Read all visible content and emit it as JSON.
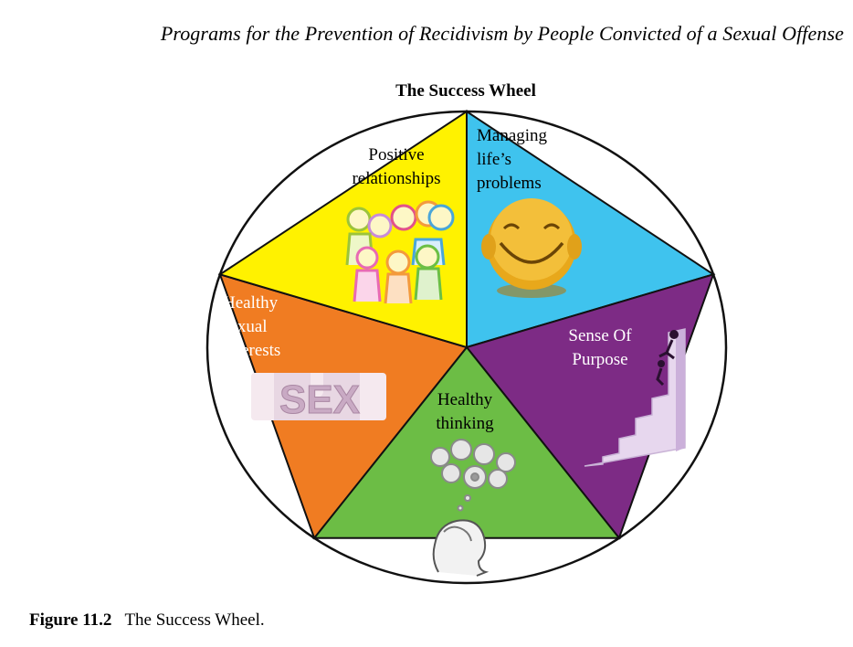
{
  "header": {
    "running_title": "Programs for the Prevention of Recidivism by People Convicted of a Sexual Offense"
  },
  "diagram": {
    "title": "The Success Wheel",
    "segments": [
      {
        "id": "managing",
        "lines": [
          "Managing",
          "life’s",
          "problems"
        ],
        "color": "#3fc3ee",
        "text_color": "#000000",
        "icon": "smiley-face-icon"
      },
      {
        "id": "purpose",
        "lines": [
          "Sense Of",
          "Purpose"
        ],
        "color": "#7d2b85",
        "text_color": "#ffffff",
        "icon": "climbing-stairs-icon"
      },
      {
        "id": "thinking",
        "lines": [
          "Healthy",
          "thinking"
        ],
        "color": "#6cbd45",
        "text_color": "#000000",
        "icon": "thinking-head-icon"
      },
      {
        "id": "sexual",
        "lines": [
          "Healthy",
          "sexual",
          "interests"
        ],
        "color": "#f07c22",
        "text_color": "#ffffff",
        "icon": "puzzle-sex-icon"
      },
      {
        "id": "relationships",
        "lines": [
          "Positive",
          "relationships"
        ],
        "color": "#fff200",
        "text_color": "#000000",
        "icon": "group-of-people-icon"
      }
    ],
    "puzzle_word": "SEX"
  },
  "caption": {
    "figure_number": "Figure 11.2",
    "text": "The Success Wheel."
  }
}
